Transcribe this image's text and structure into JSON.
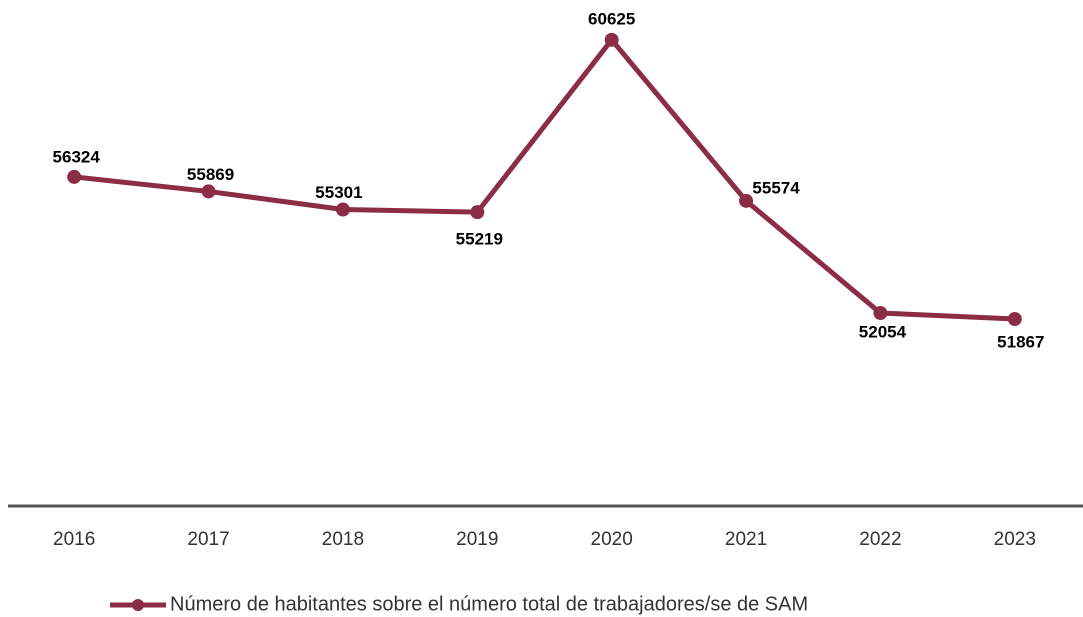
{
  "chart_data": {
    "type": "line",
    "categories": [
      "2016",
      "2017",
      "2018",
      "2019",
      "2020",
      "2021",
      "2022",
      "2023"
    ],
    "series": [
      {
        "name": "Número de habitantes sobre el número total de trabajadores/se de SAM",
        "color": "#8b2e45",
        "values": [
          56324,
          55869,
          55301,
          55219,
          60625,
          55574,
          52054,
          51867
        ]
      }
    ],
    "ylim": [
      46000,
      62000
    ],
    "grid": false,
    "legend": "bottom"
  }
}
